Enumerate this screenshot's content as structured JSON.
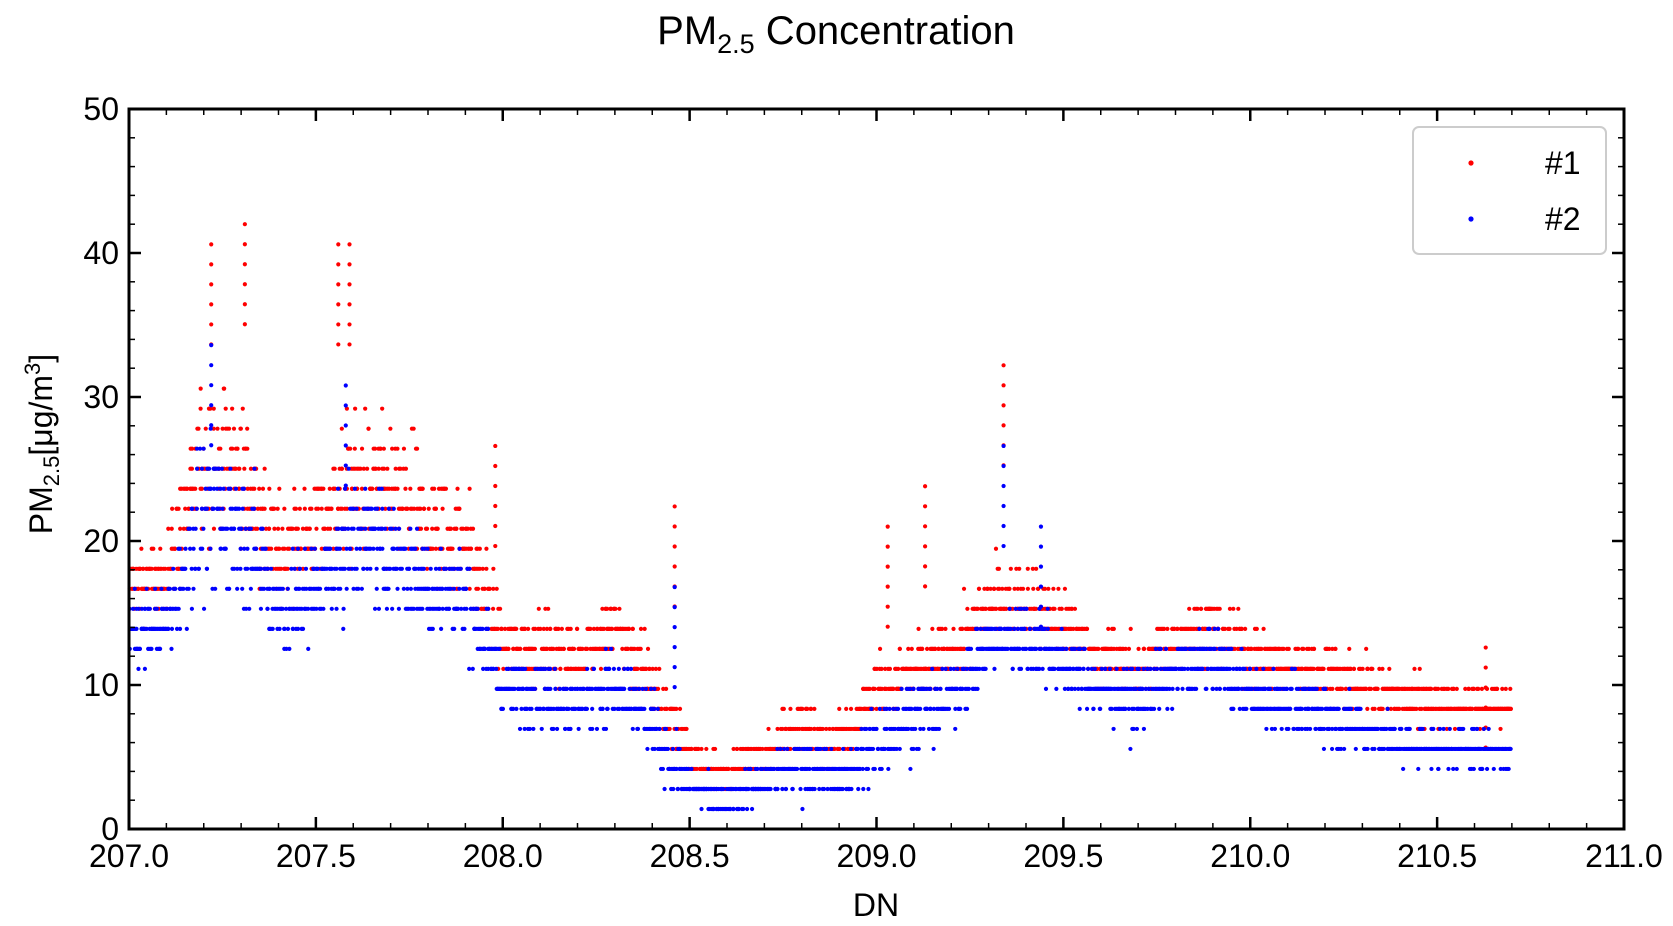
{
  "chart_data": {
    "type": "scatter",
    "title": {
      "main": "PM",
      "sub": "2.5",
      "rest": " Concentration"
    },
    "xlabel": "DN",
    "ylabel": {
      "main": "PM",
      "sub": "2.5",
      "unit": "[μg/m",
      "sup": "3",
      "close": "]"
    },
    "xlim": [
      207.0,
      211.0
    ],
    "ylim": [
      0,
      50
    ],
    "xticks": [
      207.0,
      207.5,
      208.0,
      208.5,
      209.0,
      209.5,
      210.0,
      210.5,
      211.0
    ],
    "xtick_labels": [
      "207.0",
      "207.5",
      "208.0",
      "208.5",
      "209.0",
      "209.5",
      "210.0",
      "210.5",
      "211.0"
    ],
    "yticks": [
      0,
      10,
      20,
      30,
      40,
      50
    ],
    "ytick_labels": [
      "0",
      "10",
      "20",
      "30",
      "40",
      "50"
    ],
    "grid": false,
    "legend_position": "top-right",
    "quantization_step": 1.39,
    "series": [
      {
        "name": "#1",
        "color": "#ff0000",
        "profile_x": [
          207.0,
          207.1,
          207.2,
          207.3,
          207.4,
          207.5,
          207.6,
          207.7,
          207.8,
          207.9,
          208.0,
          208.2,
          208.3,
          208.4,
          208.5,
          208.6,
          208.7,
          208.8,
          208.9,
          209.0,
          209.1,
          209.2,
          209.3,
          209.4,
          209.5,
          209.6,
          209.7,
          209.8,
          209.9,
          210.0,
          210.2,
          210.4,
          210.6,
          210.7
        ],
        "profile_center": [
          17,
          17.5,
          26,
          25,
          19,
          21,
          24,
          23,
          21,
          20,
          13,
          12,
          14,
          10,
          5,
          4,
          5,
          7,
          6,
          10,
          11,
          12,
          15.5,
          16,
          14,
          12,
          11,
          13,
          14,
          12,
          11,
          9,
          8.5,
          8.5
        ],
        "profile_spread": [
          3,
          3,
          8,
          7,
          5,
          4,
          7,
          6,
          5,
          5,
          3,
          2.5,
          3,
          3,
          2,
          1.5,
          2,
          3,
          2,
          3,
          3,
          2.5,
          3,
          3,
          3,
          2.5,
          2.5,
          3,
          3,
          2.5,
          2.5,
          2,
          1.5,
          1.2
        ],
        "peaks": [
          {
            "x": 207.22,
            "y": 40.6
          },
          {
            "x": 207.31,
            "y": 42.0
          },
          {
            "x": 207.56,
            "y": 40.6
          },
          {
            "x": 207.59,
            "y": 40.6
          },
          {
            "x": 207.98,
            "y": 26.6
          },
          {
            "x": 208.46,
            "y": 22.4
          },
          {
            "x": 209.13,
            "y": 23.8
          },
          {
            "x": 209.34,
            "y": 32.2
          },
          {
            "x": 209.03,
            "y": 21.0
          },
          {
            "x": 210.63,
            "y": 12.6
          }
        ]
      },
      {
        "name": "#2",
        "color": "#0000ff",
        "profile_x": [
          207.0,
          207.1,
          207.2,
          207.3,
          207.4,
          207.5,
          207.6,
          207.7,
          207.8,
          207.9,
          208.0,
          208.2,
          208.3,
          208.4,
          208.5,
          208.6,
          208.7,
          208.8,
          208.9,
          209.0,
          209.1,
          209.2,
          209.3,
          209.4,
          209.5,
          209.6,
          209.7,
          209.8,
          209.9,
          210.0,
          210.2,
          210.4,
          210.6,
          210.7
        ],
        "profile_center": [
          14,
          14.5,
          22,
          21,
          15,
          17,
          20.5,
          19,
          17,
          16,
          10,
          8.5,
          10,
          7,
          3,
          2,
          3.5,
          4.5,
          3.5,
          6,
          8,
          9,
          13,
          13.5,
          11.5,
          9.5,
          9,
          11,
          12,
          9.5,
          8,
          6,
          5.5,
          5.5
        ],
        "profile_spread": [
          3,
          3,
          7,
          6,
          5,
          4,
          6,
          5,
          4,
          4,
          3,
          2.5,
          3,
          3,
          1.5,
          1.2,
          1.5,
          2.5,
          2,
          3,
          3,
          2.5,
          3,
          3,
          2.5,
          2.5,
          2.5,
          3,
          3,
          2.5,
          2.5,
          1.5,
          1.5,
          1.2
        ],
        "peaks": [
          {
            "x": 207.22,
            "y": 33.6
          },
          {
            "x": 207.58,
            "y": 30.8
          },
          {
            "x": 209.34,
            "y": 26.6
          },
          {
            "x": 209.44,
            "y": 21.0
          },
          {
            "x": 208.46,
            "y": 16.8
          }
        ]
      }
    ]
  }
}
